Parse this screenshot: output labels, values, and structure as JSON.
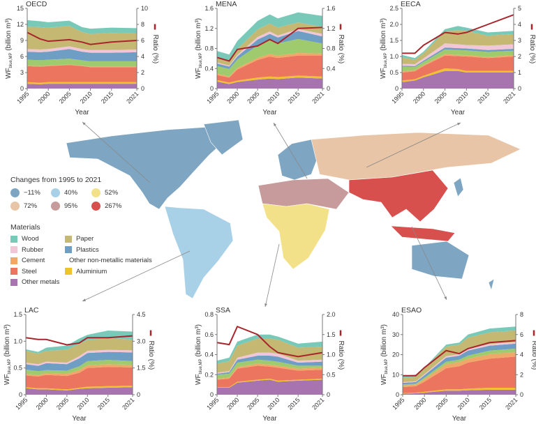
{
  "materials": [
    {
      "name": "Other metals",
      "color": "#a874b0"
    },
    {
      "name": "Aluminium",
      "color": "#f2c12e"
    },
    {
      "name": "Steel",
      "color": "#ec7560"
    },
    {
      "name": "Cement",
      "color": "#f0a868"
    },
    {
      "name": "Other non-metallic materials",
      "color": "#9fcb6e"
    },
    {
      "name": "Plastics",
      "color": "#6f9ec4"
    },
    {
      "name": "Rubber",
      "color": "#f1c6d6"
    },
    {
      "name": "Paper",
      "color": "#c4b873"
    },
    {
      "name": "Wood",
      "color": "#79c9b8"
    }
  ],
  "legend": {
    "changes_title": "Changes from 1995 to 2021",
    "changes": [
      {
        "label": "−11%",
        "color": "#7ea6c2"
      },
      {
        "label": "40%",
        "color": "#a8d1e7"
      },
      {
        "label": "52%",
        "color": "#f3e189"
      },
      {
        "label": "72%",
        "color": "#e8c5a6"
      },
      {
        "label": "95%",
        "color": "#c79a9c"
      },
      {
        "label": "267%",
        "color": "#d8504e"
      }
    ],
    "materials_title": "Materials",
    "materials_order": [
      [
        8,
        7
      ],
      [
        6,
        5
      ],
      [
        3,
        4
      ],
      [
        2,
        1
      ],
      [
        0
      ]
    ]
  },
  "ratio_color": "#a8252b",
  "chart_data": [
    {
      "type": "area",
      "title": "OECD",
      "xlabel": "Year",
      "ylabel": "WF",
      "ylabel_sub": "blue,MP",
      "ylabel_unit": " (billion m³)",
      "y2label": "Ratio (%)",
      "x": [
        1995,
        1998,
        2000,
        2005,
        2008,
        2010,
        2015,
        2021
      ],
      "xticks": [
        1995,
        2000,
        2005,
        2010,
        2015,
        2021
      ],
      "ylim": [
        0,
        15
      ],
      "yticks": [
        "0",
        "3",
        "6",
        "9",
        "12",
        "15"
      ],
      "y2lim": [
        0,
        10
      ],
      "y2ticks": [
        "0",
        "2",
        "4",
        "6",
        "8",
        "10"
      ],
      "series": [
        [
          0.9,
          0.8,
          0.9,
          0.9,
          0.9,
          0.9,
          0.9,
          0.9
        ],
        [
          0.3,
          0.3,
          0.3,
          0.3,
          0.3,
          0.3,
          0.3,
          0.3
        ],
        [
          3.0,
          3.0,
          3.0,
          3.2,
          3.0,
          2.8,
          2.8,
          2.8
        ],
        [
          0.1,
          0.1,
          0.1,
          0.1,
          0.1,
          0.1,
          0.1,
          0.1
        ],
        [
          1.1,
          1.1,
          1.1,
          1.1,
          1.0,
          1.0,
          1.0,
          1.0
        ],
        [
          1.5,
          1.5,
          1.5,
          1.8,
          1.6,
          1.6,
          1.6,
          1.7
        ],
        [
          0.5,
          0.5,
          0.5,
          0.5,
          0.5,
          0.5,
          0.5,
          0.5
        ],
        [
          4.2,
          4.2,
          4.0,
          3.8,
          3.2,
          3.0,
          3.2,
          3.0
        ],
        [
          1.2,
          1.1,
          1.0,
          1.0,
          0.9,
          1.0,
          1.0,
          1.0
        ]
      ],
      "ratio": [
        7.0,
        6.2,
        5.9,
        6.1,
        5.8,
        5.5,
        5.8,
        6.0
      ]
    },
    {
      "type": "area",
      "title": "MENA",
      "xlabel": "Year",
      "ylabel": "WF",
      "ylabel_sub": "blue,MP",
      "ylabel_unit": " (billion m³)",
      "y2label": "Ratio (%)",
      "x": [
        1995,
        1998,
        2000,
        2005,
        2008,
        2010,
        2015,
        2021
      ],
      "xticks": [
        1995,
        2000,
        2005,
        2010,
        2015,
        2021
      ],
      "ylim": [
        0,
        1.6
      ],
      "yticks": [
        "0",
        "0.4",
        "0.8",
        "1.2",
        "1.6"
      ],
      "y2lim": [
        0,
        1.6
      ],
      "y2ticks": [
        "0",
        "0.4",
        "0.8",
        "1.2",
        "1.6"
      ],
      "series": [
        [
          0.14,
          0.09,
          0.13,
          0.18,
          0.2,
          0.19,
          0.22,
          0.2
        ],
        [
          0.03,
          0.03,
          0.03,
          0.04,
          0.04,
          0.04,
          0.04,
          0.04
        ],
        [
          0.1,
          0.1,
          0.22,
          0.35,
          0.4,
          0.38,
          0.4,
          0.42
        ],
        [
          0.03,
          0.02,
          0.03,
          0.04,
          0.05,
          0.05,
          0.05,
          0.04
        ],
        [
          0.15,
          0.15,
          0.17,
          0.25,
          0.28,
          0.24,
          0.28,
          0.2
        ],
        [
          0.05,
          0.05,
          0.06,
          0.12,
          0.12,
          0.12,
          0.16,
          0.14
        ],
        [
          0.02,
          0.02,
          0.03,
          0.05,
          0.05,
          0.04,
          0.04,
          0.05
        ],
        [
          0.1,
          0.08,
          0.12,
          0.15,
          0.16,
          0.16,
          0.13,
          0.14
        ],
        [
          0.13,
          0.14,
          0.16,
          0.17,
          0.18,
          0.18,
          0.2,
          0.22
        ]
      ],
      "ratio": [
        0.62,
        0.55,
        0.78,
        0.85,
        0.98,
        0.9,
        1.2,
        1.22
      ]
    },
    {
      "type": "area",
      "title": "EECA",
      "xlabel": "Year",
      "ylabel": "WF",
      "ylabel_sub": "blue,MP",
      "ylabel_unit": " (billion m³)",
      "y2label": "Ratio (%)",
      "x": [
        1995,
        1998,
        2000,
        2005,
        2008,
        2010,
        2015,
        2021
      ],
      "xticks": [
        1995,
        2000,
        2005,
        2010,
        2015,
        2021
      ],
      "ylim": [
        0,
        2.5
      ],
      "yticks": [
        "0",
        "0.5",
        "1.0",
        "1.5",
        "2.0",
        "2.5"
      ],
      "y2lim": [
        0,
        5
      ],
      "y2ticks": [
        "0",
        "1",
        "2",
        "3",
        "4",
        "5"
      ],
      "series": [
        [
          0.2,
          0.25,
          0.35,
          0.55,
          0.55,
          0.5,
          0.5,
          0.5
        ],
        [
          0.05,
          0.04,
          0.05,
          0.08,
          0.06,
          0.05,
          0.05,
          0.05
        ],
        [
          0.25,
          0.25,
          0.3,
          0.4,
          0.4,
          0.45,
          0.4,
          0.45
        ],
        [
          0.03,
          0.03,
          0.03,
          0.04,
          0.04,
          0.04,
          0.04,
          0.04
        ],
        [
          0.15,
          0.1,
          0.1,
          0.15,
          0.15,
          0.15,
          0.15,
          0.14
        ],
        [
          0.03,
          0.03,
          0.04,
          0.06,
          0.06,
          0.06,
          0.06,
          0.06
        ],
        [
          0.06,
          0.06,
          0.07,
          0.13,
          0.12,
          0.11,
          0.14,
          0.14
        ],
        [
          0.2,
          0.14,
          0.16,
          0.37,
          0.44,
          0.44,
          0.31,
          0.32
        ],
        [
          0.08,
          0.05,
          0.05,
          0.07,
          0.13,
          0.1,
          0.1,
          0.1
        ]
      ],
      "ratio": [
        2.2,
        2.2,
        2.7,
        3.5,
        3.4,
        3.5,
        4.0,
        4.6
      ]
    },
    {
      "type": "area",
      "title": "LAC",
      "xlabel": "Year",
      "ylabel": "WF",
      "ylabel_sub": "blue,MP",
      "ylabel_unit": " (billion m³)",
      "y2label": "Ratio (%)",
      "x": [
        1995,
        1998,
        2000,
        2005,
        2008,
        2010,
        2015,
        2021
      ],
      "xticks": [
        1995,
        2000,
        2005,
        2010,
        2015,
        2021
      ],
      "ylim": [
        0,
        1.5
      ],
      "yticks": [
        "0",
        "0.5",
        "1.0",
        "1.5"
      ],
      "y2lim": [
        0,
        4.5
      ],
      "y2ticks": [
        "0",
        "1.5",
        "3.0",
        "4.5"
      ],
      "series": [
        [
          0.12,
          0.1,
          0.1,
          0.08,
          0.11,
          0.12,
          0.13,
          0.14
        ],
        [
          0.02,
          0.02,
          0.02,
          0.02,
          0.02,
          0.03,
          0.03,
          0.03
        ],
        [
          0.22,
          0.22,
          0.25,
          0.25,
          0.28,
          0.35,
          0.36,
          0.34
        ],
        [
          0.03,
          0.03,
          0.03,
          0.04,
          0.05,
          0.05,
          0.05,
          0.05
        ],
        [
          0.08,
          0.07,
          0.06,
          0.06,
          0.07,
          0.08,
          0.08,
          0.07
        ],
        [
          0.1,
          0.1,
          0.13,
          0.12,
          0.15,
          0.15,
          0.15,
          0.16
        ],
        [
          0.03,
          0.03,
          0.03,
          0.03,
          0.04,
          0.04,
          0.04,
          0.04
        ],
        [
          0.22,
          0.2,
          0.2,
          0.24,
          0.23,
          0.2,
          0.22,
          0.2
        ],
        [
          0.03,
          0.03,
          0.06,
          0.08,
          0.1,
          0.1,
          0.14,
          0.15
        ]
      ],
      "ratio": [
        3.2,
        3.1,
        3.1,
        2.8,
        2.9,
        3.2,
        3.2,
        3.3
      ]
    },
    {
      "type": "area",
      "title": "SSA",
      "xlabel": "Year",
      "ylabel": "WF",
      "ylabel_sub": "blue,MP",
      "ylabel_unit": " (billion m³)",
      "y2label": "Ratio (%)",
      "x": [
        1995,
        1998,
        2000,
        2005,
        2008,
        2010,
        2015,
        2021
      ],
      "xticks": [
        1995,
        2000,
        2005,
        2010,
        2015,
        2021
      ],
      "ylim": [
        0,
        0.8
      ],
      "yticks": [
        "0",
        "0.2",
        "0.4",
        "0.6",
        "0.8"
      ],
      "y2lim": [
        0,
        2
      ],
      "y2ticks": [
        "0",
        "0.5",
        "1.0",
        "1.5",
        "2.0"
      ],
      "series": [
        [
          0.07,
          0.07,
          0.12,
          0.14,
          0.15,
          0.13,
          0.14,
          0.15
        ],
        [
          0.005,
          0.005,
          0.01,
          0.01,
          0.01,
          0.01,
          0.01,
          0.01
        ],
        [
          0.075,
          0.085,
          0.13,
          0.14,
          0.12,
          0.13,
          0.09,
          0.09
        ],
        [
          0.01,
          0.01,
          0.015,
          0.02,
          0.02,
          0.02,
          0.02,
          0.02
        ],
        [
          0.04,
          0.04,
          0.045,
          0.04,
          0.04,
          0.04,
          0.03,
          0.02
        ],
        [
          0.01,
          0.015,
          0.03,
          0.04,
          0.05,
          0.05,
          0.03,
          0.04
        ],
        [
          0.01,
          0.01,
          0.02,
          0.03,
          0.03,
          0.03,
          0.02,
          0.02
        ],
        [
          0.09,
          0.1,
          0.12,
          0.14,
          0.14,
          0.14,
          0.13,
          0.13
        ],
        [
          0.03,
          0.035,
          0.04,
          0.04,
          0.04,
          0.03,
          0.04,
          0.05
        ]
      ],
      "ratio": [
        1.3,
        1.25,
        1.7,
        1.5,
        1.2,
        1.05,
        0.95,
        1.05
      ]
    },
    {
      "type": "area",
      "title": "ESAO",
      "xlabel": "Year",
      "ylabel": "WF",
      "ylabel_sub": "blue,MP",
      "ylabel_unit": " (billion m³)",
      "y2label": "Ratio (%)",
      "x": [
        1995,
        1998,
        2000,
        2005,
        2008,
        2010,
        2015,
        2021
      ],
      "xticks": [
        1995,
        2000,
        2005,
        2010,
        2015,
        2021
      ],
      "ylim": [
        0,
        40
      ],
      "yticks": [
        "0",
        "10",
        "20",
        "30",
        "40"
      ],
      "y2lim": [
        0,
        8
      ],
      "y2ticks": [
        "0",
        "2",
        "4",
        "6",
        "8"
      ],
      "series": [
        [
          0.5,
          0.7,
          1,
          2,
          2,
          2.2,
          2.5,
          2.5
        ],
        [
          0.3,
          0.3,
          0.5,
          0.7,
          0.7,
          0.8,
          1,
          1
        ],
        [
          3,
          3.2,
          5,
          10.5,
          11.5,
          13,
          14.5,
          15.5
        ],
        [
          0.8,
          0.8,
          1.2,
          2,
          2,
          2,
          2.2,
          2.2
        ],
        [
          0.5,
          0.5,
          0.8,
          1.3,
          1.3,
          1.5,
          1.8,
          1.8
        ],
        [
          0.8,
          0.8,
          1.2,
          2,
          2,
          2.5,
          2.5,
          2.5
        ],
        [
          0.4,
          0.4,
          0.5,
          0.7,
          0.7,
          0.8,
          0.8,
          0.8
        ],
        [
          2.2,
          2.3,
          2.8,
          4.8,
          4.8,
          5.7,
          5.8,
          5.8
        ],
        [
          1,
          1,
          0.5,
          1,
          1,
          1.5,
          1.9,
          1.9
        ]
      ],
      "ratio": [
        1.9,
        1.9,
        2.7,
        4.4,
        4.1,
        4.6,
        5.2,
        5.4
      ]
    }
  ]
}
